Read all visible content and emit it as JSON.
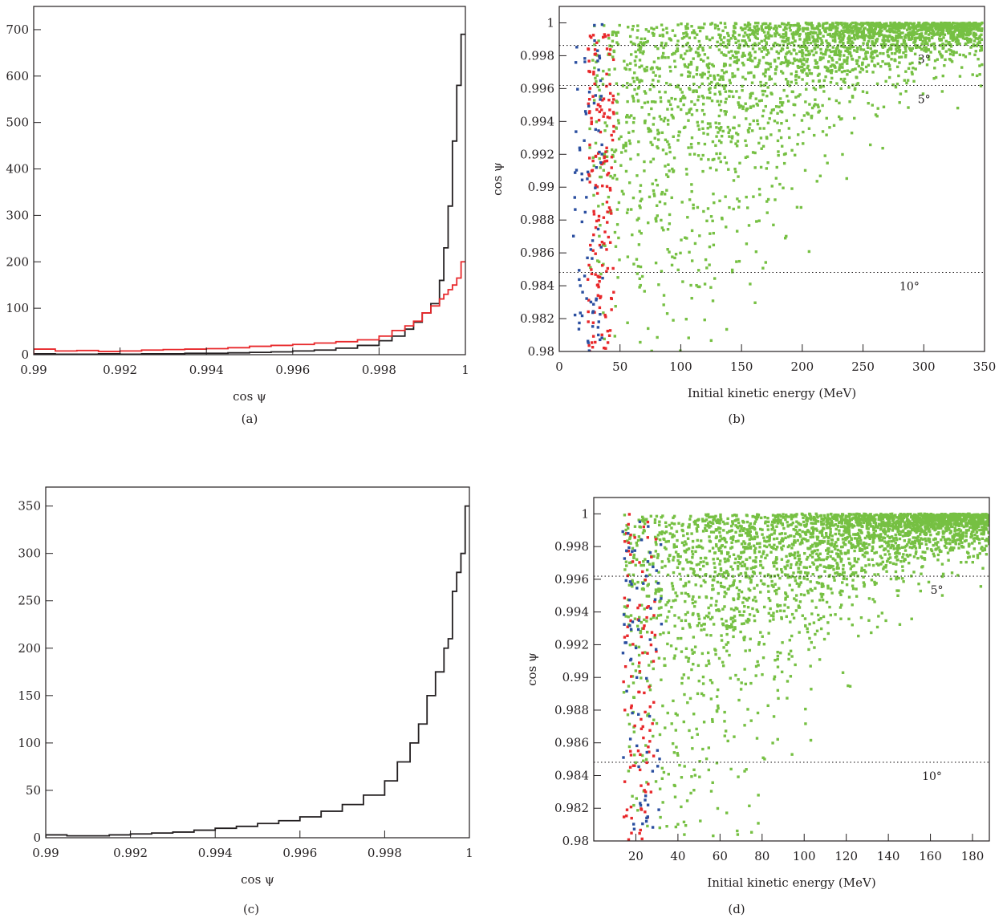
{
  "colors": {
    "axis": "#231f20",
    "black_hist": "#231f20",
    "red_hist": "#e8282b",
    "green_points": "#76c043",
    "red_points": "#e8282b",
    "blue_points": "#2b4fa0"
  },
  "chart_data": [
    {
      "id": "a",
      "type": "histogram",
      "panel_label": "(a)",
      "xlabel": "cos ψ",
      "ylabel": "",
      "xlim": [
        0.99,
        1.0
      ],
      "ylim": [
        0,
        750
      ],
      "xticks": [
        0.99,
        0.992,
        0.994,
        0.996,
        0.998,
        1
      ],
      "xtick_labels": [
        "0.99",
        "0.992",
        "0.994",
        "0.996",
        "0.998",
        "1"
      ],
      "yticks": [
        0,
        100,
        200,
        300,
        400,
        500,
        600,
        700
      ],
      "ytick_labels": [
        "0",
        "100",
        "200",
        "300",
        "400",
        "500",
        "600",
        "700"
      ],
      "series": [
        {
          "color": "#231f20",
          "bin_edges": [
            0.99,
            0.9905,
            0.991,
            0.9915,
            0.992,
            0.9925,
            0.993,
            0.9935,
            0.994,
            0.9945,
            0.995,
            0.9955,
            0.996,
            0.9965,
            0.997,
            0.9975,
            0.998,
            0.9983,
            0.9986,
            0.9988,
            0.999,
            0.9992,
            0.9994,
            0.9995,
            0.9996,
            0.9997,
            0.9998,
            0.9999,
            1.0
          ],
          "values": [
            2,
            1,
            1,
            2,
            1,
            2,
            2,
            3,
            3,
            4,
            5,
            6,
            8,
            10,
            14,
            20,
            30,
            40,
            55,
            70,
            90,
            110,
            160,
            230,
            320,
            460,
            580,
            690
          ]
        },
        {
          "color": "#e8282b",
          "bin_edges": [
            0.99,
            0.9905,
            0.991,
            0.9915,
            0.992,
            0.9925,
            0.993,
            0.9935,
            0.994,
            0.9945,
            0.995,
            0.9955,
            0.996,
            0.9965,
            0.997,
            0.9975,
            0.998,
            0.9983,
            0.9986,
            0.9988,
            0.999,
            0.9992,
            0.9994,
            0.9995,
            0.9996,
            0.9997,
            0.9998,
            0.9999,
            1.0
          ],
          "values": [
            12,
            8,
            9,
            7,
            8,
            10,
            11,
            12,
            13,
            15,
            18,
            20,
            22,
            25,
            28,
            32,
            40,
            52,
            62,
            72,
            90,
            105,
            120,
            130,
            140,
            150,
            165,
            200
          ]
        }
      ]
    },
    {
      "id": "b",
      "type": "scatter",
      "panel_label": "(b)",
      "xlabel": "Initial kinetic energy (MeV)",
      "ylabel": "cos ψ",
      "xlim": [
        0,
        350
      ],
      "ylim": [
        0.98,
        1.001
      ],
      "xticks": [
        0,
        50,
        100,
        150,
        200,
        250,
        300,
        350
      ],
      "xtick_labels": [
        "0",
        "50",
        "100",
        "150",
        "200",
        "250",
        "300",
        "350"
      ],
      "yticks": [
        0.98,
        0.982,
        0.984,
        0.986,
        0.988,
        0.99,
        0.992,
        0.994,
        0.996,
        0.998,
        1
      ],
      "ytick_labels": [
        "0.98",
        "0.982",
        "0.984",
        "0.986",
        "0.988",
        "0.99",
        "0.992",
        "0.994",
        "0.996",
        "0.998",
        "1"
      ],
      "reference_lines": [
        {
          "y": 0.99863,
          "label": "3°",
          "label_x": 295
        },
        {
          "y": 0.99619,
          "label": "5°",
          "label_x": 295
        },
        {
          "y": 0.98481,
          "label": "10°",
          "label_x": 280
        }
      ],
      "scatter": {
        "green": {
          "color": "#76c043",
          "x_range": [
            25,
            348
          ],
          "count": 2600
        },
        "red": {
          "color": "#e8282b",
          "x_range": [
            18,
            45
          ],
          "count": 160
        },
        "blue": {
          "color": "#2b4fa0",
          "x_range": [
            5,
            40
          ],
          "count": 80
        }
      }
    },
    {
      "id": "c",
      "type": "histogram",
      "panel_label": "(c)",
      "xlabel": "cos ψ",
      "ylabel": "",
      "xlim": [
        0.99,
        1.0
      ],
      "ylim": [
        0,
        370
      ],
      "xticks": [
        0.99,
        0.992,
        0.994,
        0.996,
        0.998,
        1
      ],
      "xtick_labels": [
        "0.99",
        "0.992",
        "0.994",
        "0.996",
        "0.998",
        "1"
      ],
      "yticks": [
        0,
        50,
        100,
        150,
        200,
        250,
        300,
        350
      ],
      "ytick_labels": [
        "0",
        "50",
        "100",
        "150",
        "200",
        "250",
        "300",
        "350"
      ],
      "series": [
        {
          "color": "#231f20",
          "bin_edges": [
            0.99,
            0.9905,
            0.991,
            0.9915,
            0.992,
            0.9925,
            0.993,
            0.9935,
            0.994,
            0.9945,
            0.995,
            0.9955,
            0.996,
            0.9965,
            0.997,
            0.9975,
            0.998,
            0.9983,
            0.9986,
            0.9988,
            0.999,
            0.9992,
            0.9994,
            0.9995,
            0.9996,
            0.9997,
            0.9998,
            0.9999,
            1.0
          ],
          "values": [
            3,
            2,
            2,
            3,
            4,
            5,
            6,
            8,
            10,
            12,
            15,
            18,
            22,
            28,
            35,
            45,
            60,
            80,
            100,
            120,
            150,
            175,
            200,
            210,
            260,
            280,
            300,
            350
          ]
        }
      ]
    },
    {
      "id": "d",
      "type": "scatter",
      "panel_label": "(d)",
      "xlabel": "Initial kinetic energy (MeV)",
      "ylabel": "cos ψ",
      "xlim": [
        0,
        188
      ],
      "ylim": [
        0.98,
        1.001
      ],
      "xticks": [
        20,
        40,
        60,
        80,
        100,
        120,
        140,
        160,
        180
      ],
      "xtick_labels": [
        "20",
        "40",
        "60",
        "80",
        "100",
        "120",
        "140",
        "160",
        "180"
      ],
      "yticks": [
        0.98,
        0.982,
        0.984,
        0.986,
        0.988,
        0.99,
        0.992,
        0.994,
        0.996,
        0.998,
        1
      ],
      "ytick_labels": [
        "0.98",
        "0.982",
        "0.984",
        "0.986",
        "0.988",
        "0.99",
        "0.992",
        "0.994",
        "0.996",
        "0.998",
        "1"
      ],
      "reference_lines": [
        {
          "y": 0.99619,
          "label": "5°",
          "label_x": 160
        },
        {
          "y": 0.98481,
          "label": "10°",
          "label_x": 156
        }
      ],
      "scatter": {
        "green": {
          "color": "#76c043",
          "x_range": [
            14,
            188
          ],
          "count": 3000
        },
        "red": {
          "color": "#e8282b",
          "x_range": [
            10,
            30
          ],
          "count": 100
        },
        "blue": {
          "color": "#2b4fa0",
          "x_range": [
            9,
            35
          ],
          "count": 70
        }
      }
    }
  ]
}
